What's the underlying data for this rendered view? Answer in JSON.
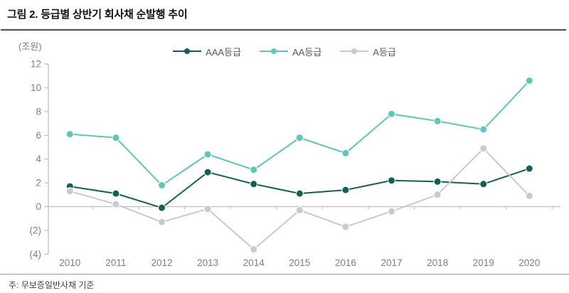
{
  "header": {
    "title": "그림 2. 등급별 상반기 회사채 순발행 추이"
  },
  "chart": {
    "unit_label": "(조원)"
  },
  "footer": {
    "note": "주: 무보증일반사채 기준"
  },
  "colors": {
    "aaa_series": "#146059",
    "aa_series": "#5fc6b8",
    "a_series": "#c9c9ce",
    "axis_line": "#c0c0c4",
    "tick_text": "#7f7f7f",
    "legend_text": "#595959",
    "title_text": "#111111",
    "title_rule": "#4d4d4d",
    "footer_rule": "#9b9b9b"
  },
  "chart_data": {
    "type": "line",
    "title": "그림 2. 등급별 상반기 회사채 순발행 추이",
    "ylabel": "(조원)",
    "categories": [
      "2010",
      "2011",
      "2012",
      "2013",
      "2014",
      "2015",
      "2016",
      "2017",
      "2018",
      "2019",
      "2020"
    ],
    "series": [
      {
        "name": "AAA등급",
        "color": "#146059",
        "values": [
          1.7,
          1.1,
          -0.1,
          2.9,
          1.9,
          1.1,
          1.4,
          2.2,
          2.1,
          1.9,
          3.2
        ]
      },
      {
        "name": "AA등급",
        "color": "#5fc6b8",
        "values": [
          6.1,
          5.8,
          1.8,
          4.4,
          3.1,
          5.8,
          4.5,
          7.8,
          7.2,
          6.5,
          10.6
        ]
      },
      {
        "name": "A등급",
        "color": "#c9c9ce",
        "values": [
          1.3,
          0.2,
          -1.3,
          -0.2,
          -3.6,
          -0.3,
          -1.7,
          -0.4,
          1.0,
          4.9,
          0.9
        ]
      }
    ],
    "ylim": [
      -4,
      12
    ],
    "ytick_step": 2,
    "negative_tick_format": "parentheses",
    "legend_position": "top",
    "grid": false
  }
}
